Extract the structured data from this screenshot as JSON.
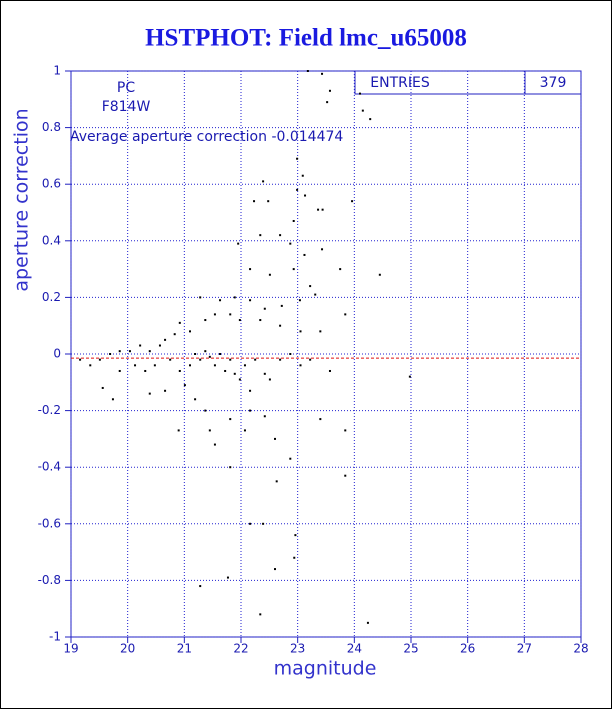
{
  "chart_data": {
    "type": "scatter",
    "title": "HSTPHOT: Field lmc_u65008",
    "xlabel": "magnitude",
    "ylabel": "aperture correction",
    "annotations": [
      "PC",
      "F814W",
      "Average aperture correction -0.014474"
    ],
    "stats": {
      "label": "ENTRIES",
      "value": 379
    },
    "mean": -0.014474,
    "mean_color": "#e01010",
    "color": "#000000",
    "grid": true,
    "xlim": [
      19,
      28
    ],
    "xticks": [
      19,
      20,
      21,
      22,
      23,
      24,
      25,
      26,
      27,
      28
    ],
    "ylim": [
      -1,
      1
    ],
    "yticks": [
      -1,
      -0.8,
      -0.6,
      -0.4,
      -0.2,
      0,
      0.2,
      0.4,
      0.6,
      0.8,
      1
    ],
    "x": [
      23.18,
      23.43,
      23.57,
      23.52,
      24.1,
      24.15,
      24.28,
      22.99,
      23.09,
      22.99,
      23.13,
      23.36,
      23.44,
      23.96,
      22.39,
      22.48,
      22.23,
      22.93,
      22.69,
      22.87,
      22.34,
      21.95,
      23.12,
      23.43,
      23.75,
      24.45,
      22.93,
      22.51,
      22.16,
      23.22,
      23.31,
      23.04,
      22.72,
      22.42,
      22.16,
      21.89,
      21.63,
      21.28,
      23.84,
      23.4,
      23.05,
      22.69,
      22.34,
      21.98,
      21.81,
      21.54,
      21.37,
      21.1,
      20.92,
      20.83,
      20.66,
      20.57,
      20.39,
      20.22,
      20.04,
      19.86,
      19.69,
      19.51,
      19.34,
      19.16,
      19.56,
      19.74,
      19.86,
      20.13,
      20.31,
      20.48,
      20.75,
      20.92,
      21.1,
      21.19,
      21.28,
      21.37,
      21.45,
      21.54,
      21.63,
      21.72,
      21.81,
      21.89,
      21.98,
      22.07,
      22.16,
      22.25,
      22.42,
      22.51,
      22.69,
      22.87,
      23.05,
      23.22,
      23.57,
      24.98,
      20.66,
      20.39,
      21.01,
      21.19,
      21.37,
      20.9,
      21.45,
      21.54,
      21.81,
      22.07,
      22.16,
      22.42,
      22.6,
      22.87,
      23.4,
      23.84,
      23.84,
      22.63,
      21.81,
      22.16,
      22.39,
      22.96,
      22.94,
      22.6,
      21.77,
      21.28,
      22.34,
      24.24
    ],
    "values": [
      1.0,
      0.99,
      0.93,
      0.89,
      0.92,
      0.86,
      0.83,
      0.69,
      0.63,
      0.58,
      0.56,
      0.51,
      0.51,
      0.54,
      0.61,
      0.54,
      0.54,
      0.47,
      0.42,
      0.39,
      0.42,
      0.39,
      0.35,
      0.37,
      0.3,
      0.28,
      0.3,
      0.28,
      0.3,
      0.24,
      0.21,
      0.19,
      0.17,
      0.16,
      0.19,
      0.2,
      0.19,
      0.2,
      0.14,
      0.08,
      0.08,
      0.1,
      0.12,
      0.12,
      0.14,
      0.14,
      0.12,
      0.08,
      0.11,
      0.07,
      0.05,
      0.03,
      0.01,
      0.03,
      0.01,
      0.01,
      0.0,
      -0.02,
      -0.04,
      -0.02,
      -0.12,
      -0.16,
      -0.06,
      -0.04,
      -0.06,
      -0.04,
      -0.02,
      -0.06,
      -0.04,
      0.0,
      -0.02,
      0.01,
      -0.01,
      -0.04,
      0.0,
      -0.06,
      -0.02,
      -0.07,
      -0.09,
      -0.04,
      -0.13,
      -0.02,
      -0.07,
      -0.09,
      -0.02,
      0.0,
      -0.04,
      -0.02,
      -0.06,
      -0.08,
      -0.13,
      -0.14,
      -0.11,
      -0.16,
      -0.2,
      -0.27,
      -0.27,
      -0.32,
      -0.23,
      -0.27,
      -0.2,
      -0.22,
      -0.3,
      -0.37,
      -0.23,
      -0.27,
      -0.43,
      -0.45,
      -0.4,
      -0.6,
      -0.6,
      -0.64,
      -0.72,
      -0.76,
      -0.79,
      -0.82,
      -0.92,
      -0.95
    ]
  }
}
